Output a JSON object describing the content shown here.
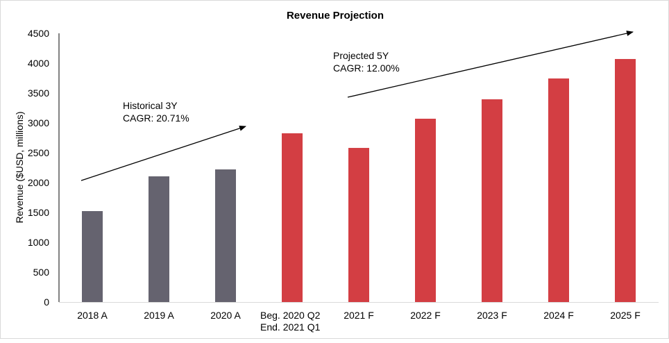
{
  "chart_data": {
    "type": "bar",
    "title": "Revenue Projection",
    "xlabel": "",
    "ylabel": "Revenue ($USD, millions)",
    "ylim": [
      0,
      4500
    ],
    "yticks": [
      0,
      500,
      1000,
      1500,
      2000,
      2500,
      3000,
      3500,
      4000,
      4500
    ],
    "grid": false,
    "categories": [
      "2018 A",
      "2019 A",
      "2020 A",
      "Beg. 2020 Q2\nEnd. 2021 Q1",
      "2021 F",
      "2022 F",
      "2023 F",
      "2024 F",
      "2025 F"
    ],
    "values": [
      1523,
      2105,
      2221,
      2826,
      2581,
      3070,
      3395,
      3744,
      4070
    ],
    "bar_groups": [
      "historical",
      "historical",
      "historical",
      "projected",
      "projected",
      "projected",
      "projected",
      "projected",
      "projected"
    ],
    "colors": {
      "historical": "#65636f",
      "projected": "#d33e43",
      "axis": "#595959",
      "baseline": "#d9d9d9"
    },
    "annotations": [
      {
        "name": "historical-cagr",
        "lines": [
          "Historical 3Y",
          "CAGR: 20.71%"
        ]
      },
      {
        "name": "projected-cagr",
        "lines": [
          "Projected 5Y",
          "CAGR: 12.00%"
        ]
      }
    ]
  }
}
